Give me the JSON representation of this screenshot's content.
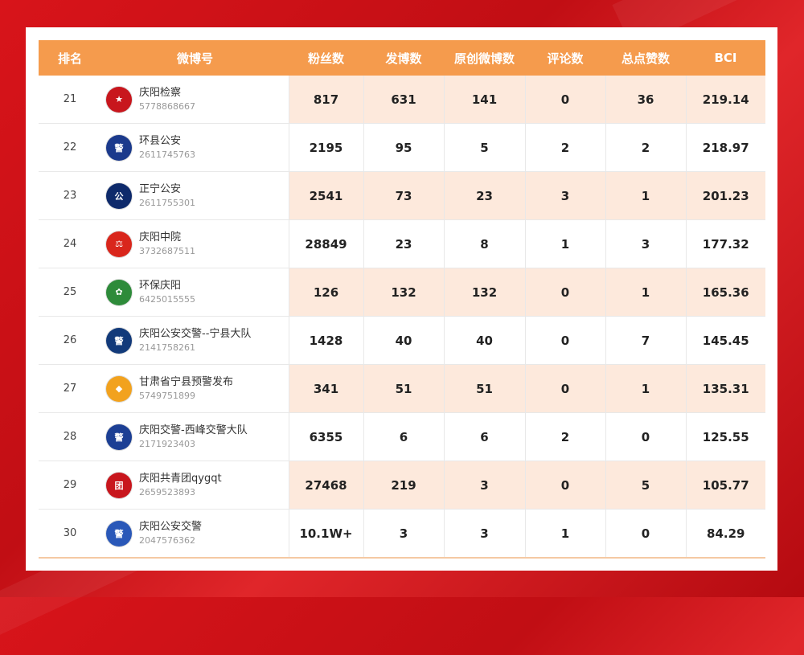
{
  "table": {
    "headers": [
      "排名",
      "微博号",
      "粉丝数",
      "发博数",
      "原创微博数",
      "评论数",
      "总点赞数",
      "BCI"
    ],
    "rows": [
      {
        "rank": "21",
        "name": "庆阳检察",
        "id": "5778868667",
        "fans": "817",
        "posts": "631",
        "original": "141",
        "comments": "0",
        "likes": "36",
        "bci": "219.14",
        "shade": true,
        "avatar_color": "#c8161d",
        "avatar_glyph": "★",
        "avatar_icon": "procuratorate-emblem-icon"
      },
      {
        "rank": "22",
        "name": "环县公安",
        "id": "2611745763",
        "fans": "2195",
        "posts": "95",
        "original": "5",
        "comments": "2",
        "likes": "2",
        "bci": "218.97",
        "shade": false,
        "avatar_color": "#1b3a8c",
        "avatar_glyph": "警",
        "avatar_icon": "police-badge-icon"
      },
      {
        "rank": "23",
        "name": "正宁公安",
        "id": "2611755301",
        "fans": "2541",
        "posts": "73",
        "original": "23",
        "comments": "3",
        "likes": "1",
        "bci": "201.23",
        "shade": true,
        "avatar_color": "#0e2a6b",
        "avatar_glyph": "公",
        "avatar_icon": "police-badge-icon"
      },
      {
        "rank": "24",
        "name": "庆阳中院",
        "id": "3732687511",
        "fans": "28849",
        "posts": "23",
        "original": "8",
        "comments": "1",
        "likes": "3",
        "bci": "177.32",
        "shade": false,
        "avatar_color": "#d9261c",
        "avatar_glyph": "⚖",
        "avatar_icon": "court-emblem-icon"
      },
      {
        "rank": "25",
        "name": "环保庆阳",
        "id": "6425015555",
        "fans": "126",
        "posts": "132",
        "original": "132",
        "comments": "0",
        "likes": "1",
        "bci": "165.36",
        "shade": true,
        "avatar_color": "#2e8b3a",
        "avatar_glyph": "✿",
        "avatar_icon": "environment-leaf-icon"
      },
      {
        "rank": "26",
        "name": "庆阳公安交警--宁县大队",
        "id": "2141758261",
        "fans": "1428",
        "posts": "40",
        "original": "40",
        "comments": "0",
        "likes": "7",
        "bci": "145.45",
        "shade": false,
        "avatar_color": "#123a7a",
        "avatar_glyph": "警",
        "avatar_icon": "traffic-police-badge-icon"
      },
      {
        "rank": "27",
        "name": "甘肃省宁县预警发布",
        "id": "5749751899",
        "fans": "341",
        "posts": "51",
        "original": "51",
        "comments": "0",
        "likes": "1",
        "bci": "135.31",
        "shade": true,
        "avatar_color": "#f2a21e",
        "avatar_glyph": "◆",
        "avatar_icon": "weather-warning-icon"
      },
      {
        "rank": "28",
        "name": "庆阳交警-西峰交警大队",
        "id": "2171923403",
        "fans": "6355",
        "posts": "6",
        "original": "6",
        "comments": "2",
        "likes": "0",
        "bci": "125.55",
        "shade": false,
        "avatar_color": "#1c3f94",
        "avatar_glyph": "警",
        "avatar_icon": "traffic-police-badge-icon"
      },
      {
        "rank": "29",
        "name": "庆阳共青团qygqt",
        "id": "2659523893",
        "fans": "27468",
        "posts": "219",
        "original": "3",
        "comments": "0",
        "likes": "5",
        "bci": "105.77",
        "shade": true,
        "avatar_color": "#c8161d",
        "avatar_glyph": "团",
        "avatar_icon": "youth-league-icon"
      },
      {
        "rank": "30",
        "name": "庆阳公安交警",
        "id": "2047576362",
        "fans": "10.1W+",
        "posts": "3",
        "original": "3",
        "comments": "1",
        "likes": "0",
        "bci": "84.29",
        "shade": false,
        "avatar_color": "#2a58b8",
        "avatar_glyph": "警",
        "avatar_icon": "traffic-police-badge-icon"
      }
    ]
  }
}
